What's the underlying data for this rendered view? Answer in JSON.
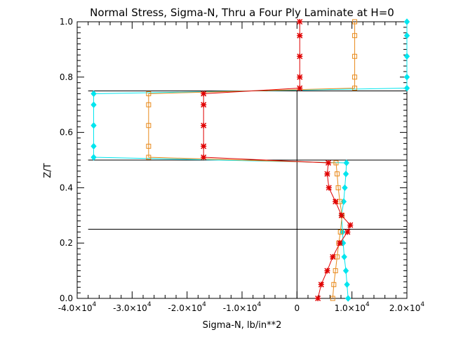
{
  "chart_data": {
    "type": "line",
    "title": "Normal Stress, Sigma-N, Thru a Four Ply Laminate at H=0",
    "xlabel": "Sigma-N,  lb/in**2",
    "ylabel": "Z/T",
    "xlim": [
      -40000,
      20000
    ],
    "ylim": [
      0.0,
      1.0
    ],
    "grid": false,
    "x_ticks": [
      {
        "value": -40000,
        "mant": "-4.0×10",
        "exp": "4"
      },
      {
        "value": -30000,
        "mant": "-3.0×10",
        "exp": "4"
      },
      {
        "value": -20000,
        "mant": "-2.0×10",
        "exp": "4"
      },
      {
        "value": -10000,
        "mant": "-1.0×10",
        "exp": "4"
      },
      {
        "value": 0,
        "mant": "0",
        "exp": ""
      },
      {
        "value": 10000,
        "mant": "1.0×10",
        "exp": "4"
      },
      {
        "value": 20000,
        "mant": "2.0×10",
        "exp": "4"
      }
    ],
    "y_ticks": [
      {
        "value": 0.0,
        "label": "0.0"
      },
      {
        "value": 0.2,
        "label": "0.2"
      },
      {
        "value": 0.4,
        "label": "0.4"
      },
      {
        "value": 0.6,
        "label": "0.6"
      },
      {
        "value": 0.8,
        "label": "0.8"
      },
      {
        "value": 1.0,
        "label": "1.0"
      }
    ],
    "ply_interfaces": [
      0.25,
      0.5,
      0.75
    ],
    "zero_line_x": 0,
    "series": [
      {
        "color": "#00e5ee",
        "marker": "diamond",
        "points": [
          [
            9300,
            0.0
          ],
          [
            9100,
            0.05
          ],
          [
            8900,
            0.1
          ],
          [
            8600,
            0.15
          ],
          [
            8400,
            0.2
          ],
          [
            8300,
            0.24
          ],
          [
            8100,
            0.3
          ],
          [
            8500,
            0.35
          ],
          [
            8700,
            0.4
          ],
          [
            8900,
            0.45
          ],
          [
            9000,
            0.49
          ],
          [
            -37000,
            0.51
          ],
          [
            -37000,
            0.55
          ],
          [
            -37000,
            0.625
          ],
          [
            -37000,
            0.7
          ],
          [
            -37000,
            0.74
          ],
          [
            20000,
            0.76
          ],
          [
            20000,
            0.8
          ],
          [
            20000,
            0.875
          ],
          [
            20000,
            0.95
          ],
          [
            20000,
            1.0
          ]
        ]
      },
      {
        "color": "#e8891a",
        "marker": "square",
        "points": [
          [
            6500,
            0.0
          ],
          [
            6700,
            0.05
          ],
          [
            7000,
            0.1
          ],
          [
            7300,
            0.15
          ],
          [
            7600,
            0.2
          ],
          [
            7900,
            0.24
          ],
          [
            8200,
            0.3
          ],
          [
            7800,
            0.35
          ],
          [
            7500,
            0.4
          ],
          [
            7300,
            0.45
          ],
          [
            7100,
            0.49
          ],
          [
            -27000,
            0.51
          ],
          [
            -27000,
            0.55
          ],
          [
            -27000,
            0.625
          ],
          [
            -27000,
            0.7
          ],
          [
            -27000,
            0.74
          ],
          [
            10500,
            0.76
          ],
          [
            10500,
            0.8
          ],
          [
            10500,
            0.875
          ],
          [
            10500,
            0.95
          ],
          [
            10500,
            1.0
          ]
        ]
      },
      {
        "color": "#e00000",
        "marker": "asterisk",
        "points": [
          [
            3800,
            0.0
          ],
          [
            4400,
            0.05
          ],
          [
            5500,
            0.1
          ],
          [
            6500,
            0.15
          ],
          [
            7800,
            0.2
          ],
          [
            9200,
            0.24
          ],
          [
            9700,
            0.265
          ],
          [
            8100,
            0.3
          ],
          [
            7000,
            0.35
          ],
          [
            5800,
            0.4
          ],
          [
            5500,
            0.45
          ],
          [
            5700,
            0.49
          ],
          [
            -17000,
            0.51
          ],
          [
            -17000,
            0.55
          ],
          [
            -17000,
            0.625
          ],
          [
            -17000,
            0.7
          ],
          [
            -17000,
            0.74
          ],
          [
            500,
            0.76
          ],
          [
            500,
            0.8
          ],
          [
            500,
            0.875
          ],
          [
            500,
            0.95
          ],
          [
            500,
            1.0
          ]
        ]
      }
    ]
  }
}
